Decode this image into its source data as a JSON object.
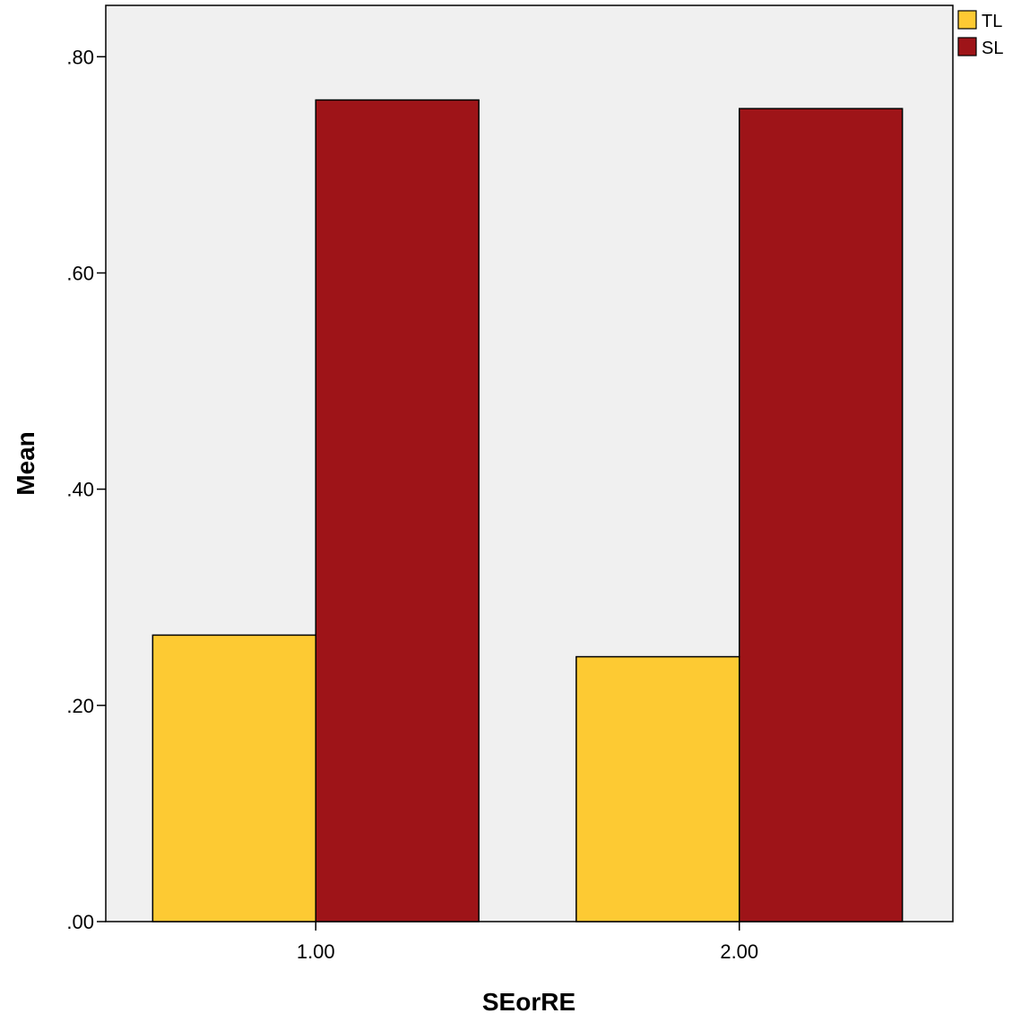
{
  "chart_data": {
    "type": "bar",
    "xlabel": "SEorRE",
    "ylabel": "Mean",
    "categories": [
      "1.00",
      "2.00"
    ],
    "series": [
      {
        "name": "TL",
        "values": [
          0.265,
          0.245
        ],
        "color": "#FDCA33"
      },
      {
        "name": "SL",
        "values": [
          0.76,
          0.752
        ],
        "color": "#9E1418"
      }
    ],
    "ylim": [
      0,
      0.8475
    ],
    "yticks": [
      0,
      0.2,
      0.4,
      0.6,
      0.8
    ],
    "ytick_labels": [
      ".00",
      ".20",
      ".40",
      ".60",
      ".80"
    ],
    "grid": false,
    "legend_position": "top-right, outside plot",
    "plot_background": "#F0F0F0"
  }
}
